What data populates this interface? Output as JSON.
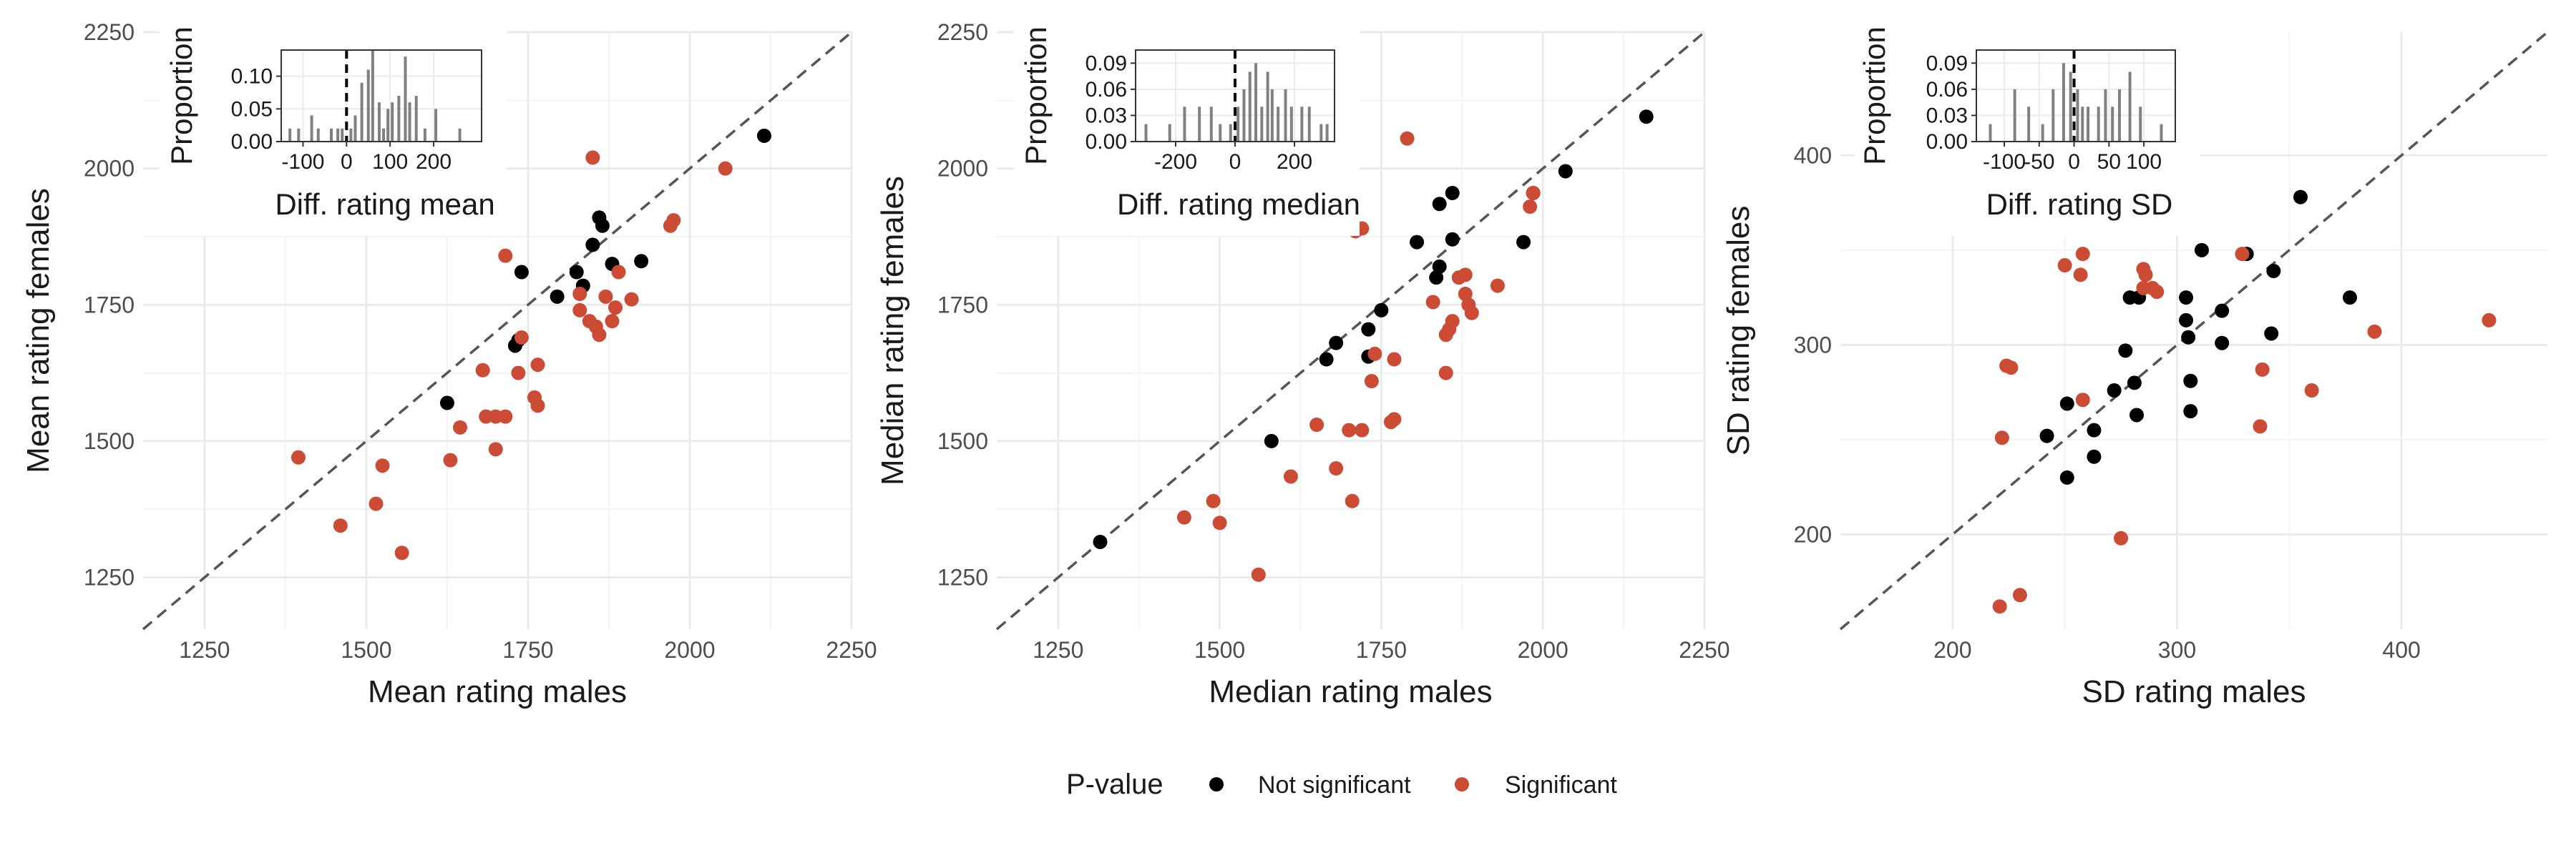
{
  "colors": {
    "not_significant": "#000000",
    "significant": "#cb4b34",
    "grid": "#ebebeb",
    "diagonal": "#555555",
    "bar": "#808080"
  },
  "legend": {
    "title": "P-value",
    "items": [
      {
        "label": "Not significant",
        "color": "#000000"
      },
      {
        "label": "Significant",
        "color": "#cb4b34"
      }
    ]
  },
  "chart_data": [
    {
      "type": "scatter",
      "xlabel": "Mean rating males",
      "ylabel": "Mean rating females",
      "xlim": [
        1155,
        2250
      ],
      "ylim": [
        1155,
        2250
      ],
      "xticks": [
        1250,
        1500,
        1750,
        2000,
        2250
      ],
      "yticks": [
        1250,
        1500,
        1750,
        2000,
        2250
      ],
      "diagonal": true,
      "series": [
        {
          "name": "Not significant",
          "color": "#000000",
          "points": [
            [
              2115,
              2060
            ],
            [
              1860,
              1910
            ],
            [
              1865,
              1895
            ],
            [
              1850,
              1860
            ],
            [
              1880,
              1825
            ],
            [
              1925,
              1830
            ],
            [
              1825,
              1810
            ],
            [
              1740,
              1810
            ],
            [
              1835,
              1785
            ],
            [
              1795,
              1765
            ],
            [
              1730,
              1675
            ],
            [
              1735,
              1685
            ],
            [
              1625,
              1570
            ]
          ]
        },
        {
          "name": "Significant",
          "color": "#cb4b34",
          "points": [
            [
              1850,
              2020
            ],
            [
              2055,
              2000
            ],
            [
              1975,
              1905
            ],
            [
              1970,
              1895
            ],
            [
              1715,
              1840
            ],
            [
              1890,
              1810
            ],
            [
              1830,
              1770
            ],
            [
              1870,
              1765
            ],
            [
              1910,
              1760
            ],
            [
              1885,
              1745
            ],
            [
              1830,
              1740
            ],
            [
              1845,
              1720
            ],
            [
              1880,
              1720
            ],
            [
              1855,
              1710
            ],
            [
              1860,
              1695
            ],
            [
              1740,
              1690
            ],
            [
              1765,
              1640
            ],
            [
              1680,
              1630
            ],
            [
              1735,
              1625
            ],
            [
              1760,
              1580
            ],
            [
              1765,
              1565
            ],
            [
              1685,
              1545
            ],
            [
              1700,
              1545
            ],
            [
              1715,
              1545
            ],
            [
              1645,
              1525
            ],
            [
              1700,
              1485
            ],
            [
              1395,
              1470
            ],
            [
              1630,
              1465
            ],
            [
              1525,
              1455
            ],
            [
              1515,
              1385
            ],
            [
              1460,
              1345
            ],
            [
              1555,
              1295
            ]
          ]
        }
      ],
      "inset": {
        "type": "bar",
        "xlabel": "Diff. rating mean",
        "ylabel": "Proportion",
        "xlim": [
          -150,
          310
        ],
        "ylim": [
          0,
          0.14
        ],
        "xticks": [
          {
            "v": -100,
            "label": "-100"
          },
          {
            "v": 0,
            "label": "0"
          },
          {
            "v": 100,
            "label": "100"
          },
          {
            "v": 200,
            "label": "200"
          }
        ],
        "yticks": [
          {
            "v": 0,
            "label": "0.00"
          },
          {
            "v": 0.05,
            "label": "0.05"
          },
          {
            "v": 0.1,
            "label": "0.10"
          }
        ],
        "ref_line": 0,
        "bars": [
          [
            -130,
            0.02
          ],
          [
            -110,
            0.02
          ],
          [
            -80,
            0.04
          ],
          [
            -65,
            0.02
          ],
          [
            -35,
            0.02
          ],
          [
            -20,
            0.02
          ],
          [
            -10,
            0.02
          ],
          [
            10,
            0.02
          ],
          [
            20,
            0.04
          ],
          [
            35,
            0.09
          ],
          [
            50,
            0.11
          ],
          [
            60,
            0.14
          ],
          [
            75,
            0.06
          ],
          [
            85,
            0.02
          ],
          [
            95,
            0.05
          ],
          [
            105,
            0.06
          ],
          [
            120,
            0.07
          ],
          [
            135,
            0.13
          ],
          [
            145,
            0.06
          ],
          [
            160,
            0.07
          ],
          [
            180,
            0.02
          ],
          [
            205,
            0.05
          ],
          [
            260,
            0.02
          ]
        ]
      }
    },
    {
      "type": "scatter",
      "xlabel": "Median rating males",
      "ylabel": "Median rating females",
      "xlim": [
        1155,
        2250
      ],
      "ylim": [
        1155,
        2250
      ],
      "xticks": [
        1250,
        1500,
        1750,
        2000,
        2250
      ],
      "yticks": [
        1250,
        1500,
        1750,
        2000,
        2250
      ],
      "diagonal": true,
      "series": [
        {
          "name": "Not significant",
          "color": "#000000",
          "points": [
            [
              2160,
              2095
            ],
            [
              2035,
              1995
            ],
            [
              1985,
              1955
            ],
            [
              1860,
              1955
            ],
            [
              1840,
              1935
            ],
            [
              1970,
              1865
            ],
            [
              1805,
              1865
            ],
            [
              1860,
              1870
            ],
            [
              1840,
              1820
            ],
            [
              1835,
              1800
            ],
            [
              1750,
              1740
            ],
            [
              1730,
              1705
            ],
            [
              1680,
              1680
            ],
            [
              1665,
              1650
            ],
            [
              1730,
              1655
            ],
            [
              1580,
              1500
            ],
            [
              1315,
              1315
            ]
          ]
        },
        {
          "name": "Significant",
          "color": "#cb4b34",
          "points": [
            [
              1790,
              2055
            ],
            [
              1985,
              1955
            ],
            [
              1980,
              1930
            ],
            [
              1710,
              1885
            ],
            [
              1720,
              1890
            ],
            [
              1880,
              1805
            ],
            [
              1870,
              1800
            ],
            [
              1930,
              1785
            ],
            [
              1880,
              1770
            ],
            [
              1885,
              1750
            ],
            [
              1830,
              1755
            ],
            [
              1890,
              1735
            ],
            [
              1860,
              1720
            ],
            [
              1855,
              1705
            ],
            [
              1850,
              1695
            ],
            [
              1740,
              1660
            ],
            [
              1770,
              1650
            ],
            [
              1850,
              1625
            ],
            [
              1735,
              1610
            ],
            [
              1770,
              1540
            ],
            [
              1765,
              1535
            ],
            [
              1650,
              1530
            ],
            [
              1700,
              1520
            ],
            [
              1720,
              1520
            ],
            [
              1610,
              1435
            ],
            [
              1680,
              1450
            ],
            [
              1490,
              1390
            ],
            [
              1705,
              1390
            ],
            [
              1445,
              1360
            ],
            [
              1500,
              1350
            ],
            [
              1560,
              1255
            ]
          ]
        }
      ],
      "inset": {
        "type": "bar",
        "xlabel": "Diff. rating median",
        "ylabel": "Proportion",
        "xlim": [
          -335,
          335
        ],
        "ylim": [
          0,
          0.105
        ],
        "xticks": [
          {
            "v": -200,
            "label": "-200"
          },
          {
            "v": 0,
            "label": "0"
          },
          {
            "v": 200,
            "label": "200"
          }
        ],
        "yticks": [
          {
            "v": 0,
            "label": "0.00"
          },
          {
            "v": 0.03,
            "label": "0.03"
          },
          {
            "v": 0.06,
            "label": "0.06"
          },
          {
            "v": 0.09,
            "label": "0.09"
          }
        ],
        "ref_line": 0,
        "bars": [
          [
            -300,
            0.02
          ],
          [
            -220,
            0.02
          ],
          [
            -170,
            0.04
          ],
          [
            -120,
            0.04
          ],
          [
            -80,
            0.04
          ],
          [
            -50,
            0.02
          ],
          [
            -15,
            0.02
          ],
          [
            10,
            0.04
          ],
          [
            30,
            0.06
          ],
          [
            50,
            0.08
          ],
          [
            70,
            0.09
          ],
          [
            90,
            0.04
          ],
          [
            110,
            0.08
          ],
          [
            125,
            0.06
          ],
          [
            145,
            0.04
          ],
          [
            170,
            0.06
          ],
          [
            190,
            0.04
          ],
          [
            225,
            0.04
          ],
          [
            250,
            0.04
          ],
          [
            290,
            0.02
          ],
          [
            310,
            0.02
          ]
        ]
      }
    },
    {
      "type": "scatter",
      "xlabel": "SD rating males",
      "ylabel": "SD rating females",
      "xlim": [
        150,
        465
      ],
      "ylim": [
        150,
        465
      ],
      "xticks": [
        200,
        300,
        400
      ],
      "yticks": [
        200,
        300,
        400
      ],
      "diagonal": true,
      "series": [
        {
          "name": "Not significant",
          "color": "#000000",
          "points": [
            [
              355,
              378
            ],
            [
              311,
              350
            ],
            [
              331,
              348
            ],
            [
              343,
              339
            ],
            [
              377,
              325
            ],
            [
              304,
              325
            ],
            [
              279,
              325
            ],
            [
              283,
              325
            ],
            [
              320,
              318
            ],
            [
              304,
              313
            ],
            [
              342,
              306
            ],
            [
              305,
              304
            ],
            [
              320,
              301
            ],
            [
              277,
              297
            ],
            [
              306,
              281
            ],
            [
              281,
              280
            ],
            [
              272,
              276
            ],
            [
              306,
              265
            ],
            [
              251,
              269
            ],
            [
              282,
              263
            ],
            [
              263,
              255
            ],
            [
              242,
              252
            ],
            [
              263,
              241
            ],
            [
              251,
              230
            ]
          ]
        },
        {
          "name": "Significant",
          "color": "#cb4b34",
          "points": [
            [
              258,
              348
            ],
            [
              250,
              342
            ],
            [
              285,
              340
            ],
            [
              257,
              337
            ],
            [
              286,
              337
            ],
            [
              291,
              328
            ],
            [
              329,
              348
            ],
            [
              285,
              330
            ],
            [
              289,
              330
            ],
            [
              388,
              307
            ],
            [
              439,
              313
            ],
            [
              224,
              289
            ],
            [
              226,
              288
            ],
            [
              338,
              287
            ],
            [
              258,
              271
            ],
            [
              360,
              276
            ],
            [
              337,
              257
            ],
            [
              222,
              251
            ],
            [
              275,
              198
            ],
            [
              230,
              168
            ],
            [
              221,
              162
            ]
          ]
        }
      ],
      "inset": {
        "type": "bar",
        "xlabel": "Diff. rating SD",
        "ylabel": "Proportion",
        "xlim": [
          -140,
          145
        ],
        "ylim": [
          0,
          0.105
        ],
        "xticks": [
          {
            "v": -100,
            "label": "-100"
          },
          {
            "v": -50,
            "label": "-50"
          },
          {
            "v": 0,
            "label": "0"
          },
          {
            "v": 50,
            "label": "50"
          },
          {
            "v": 100,
            "label": "100"
          }
        ],
        "yticks": [
          {
            "v": 0,
            "label": "0.00"
          },
          {
            "v": 0.03,
            "label": "0.03"
          },
          {
            "v": 0.06,
            "label": "0.06"
          },
          {
            "v": 0.09,
            "label": "0.09"
          }
        ],
        "ref_line": 0,
        "bars": [
          [
            -120,
            0.02
          ],
          [
            -85,
            0.06
          ],
          [
            -65,
            0.04
          ],
          [
            -45,
            0.02
          ],
          [
            -30,
            0.06
          ],
          [
            -15,
            0.09
          ],
          [
            -5,
            0.08
          ],
          [
            5,
            0.06
          ],
          [
            12,
            0.04
          ],
          [
            20,
            0.04
          ],
          [
            35,
            0.04
          ],
          [
            45,
            0.06
          ],
          [
            55,
            0.04
          ],
          [
            65,
            0.06
          ],
          [
            80,
            0.08
          ],
          [
            95,
            0.04
          ],
          [
            125,
            0.02
          ]
        ]
      }
    }
  ]
}
